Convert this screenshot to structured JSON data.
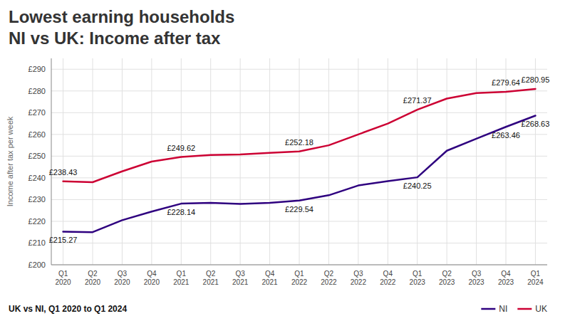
{
  "chart_data": {
    "type": "line",
    "title": [
      "Lowest earning households",
      "NI vs UK: Income after tax"
    ],
    "subtitle": "UK vs NI, Q1 2020 to Q1 2024",
    "y_label": "Income after tax per week",
    "categories": [
      "Q1\n2020",
      "Q2\n2020",
      "Q3\n2020",
      "Q4\n2020",
      "Q1\n2021",
      "Q2\n2021",
      "Q3\n2021",
      "Q4\n2021",
      "Q1\n2022",
      "Q2\n2022",
      "Q3\n2022",
      "Q4\n2022",
      "Q1\n2023",
      "Q2\n2023",
      "Q3\n2023",
      "Q4\n2023",
      "Q1\n2024"
    ],
    "series": [
      {
        "name": "NI",
        "color": "#2e007f",
        "values": [
          215.27,
          215.0,
          220.5,
          224.5,
          228.14,
          228.5,
          228.0,
          228.5,
          229.54,
          232.0,
          236.5,
          238.5,
          240.25,
          252.5,
          258.0,
          263.46,
          268.63
        ],
        "value_labels": [
          "£215.27",
          null,
          null,
          null,
          "£228.14",
          null,
          null,
          null,
          "£229.54",
          null,
          null,
          null,
          "£240.25",
          null,
          null,
          "£263.46",
          "£268.63"
        ]
      },
      {
        "name": "UK",
        "color": "#cc0033",
        "values": [
          238.43,
          238.0,
          243.0,
          247.5,
          249.62,
          250.5,
          250.8,
          251.5,
          252.18,
          255.0,
          260.0,
          265.0,
          271.37,
          276.5,
          279.0,
          279.64,
          280.95
        ],
        "value_labels": [
          "£238.43",
          null,
          null,
          null,
          "£249.62",
          null,
          null,
          null,
          "£252.18",
          null,
          null,
          null,
          "£271.37",
          null,
          null,
          "£279.64",
          "£280.95"
        ]
      }
    ],
    "ylim": [
      200,
      295
    ],
    "yticks": [
      {
        "value": 200,
        "label": "£200"
      },
      {
        "value": 210,
        "label": "£210"
      },
      {
        "value": 220,
        "label": "£220"
      },
      {
        "value": 230,
        "label": "£230"
      },
      {
        "value": 240,
        "label": "£240"
      },
      {
        "value": 250,
        "label": "£250"
      },
      {
        "value": 260,
        "label": "£260"
      },
      {
        "value": 270,
        "label": "£270"
      },
      {
        "value": 280,
        "label": "£280"
      },
      {
        "value": 290,
        "label": "£290"
      }
    ],
    "grid": true,
    "data_labels": true,
    "legend": "bottom-right"
  }
}
